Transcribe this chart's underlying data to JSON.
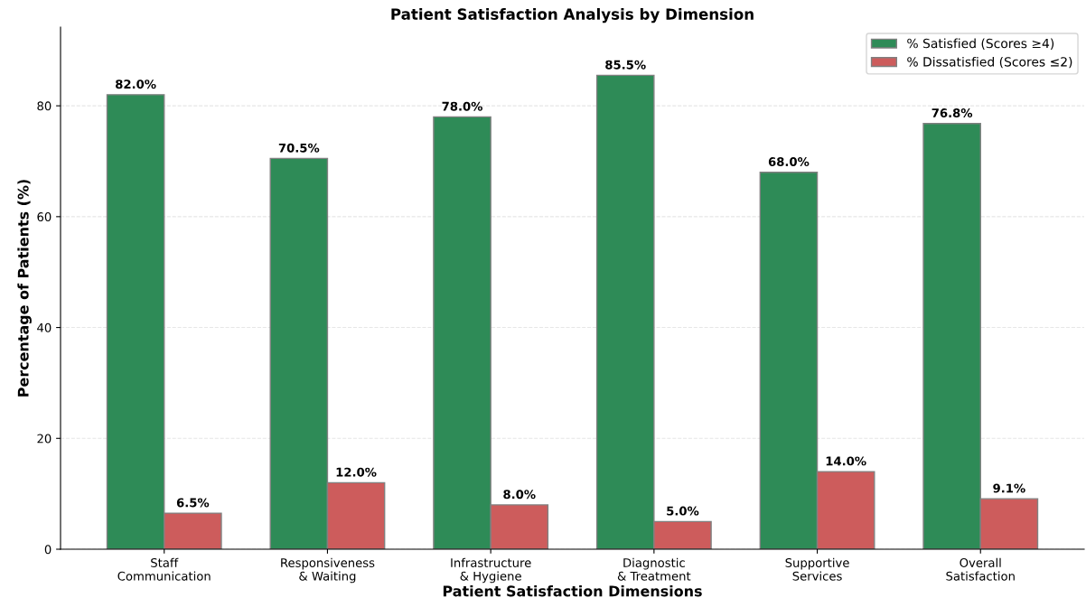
{
  "chart_data": {
    "type": "bar",
    "title": "Patient Satisfaction Analysis by Dimension",
    "xlabel": "Patient Satisfaction Dimensions",
    "ylabel": "Percentage of Patients (%)",
    "categories": [
      "Staff\nCommunication",
      "Responsiveness\n& Waiting",
      "Infrastructure\n& Hygiene",
      "Diagnostic\n& Treatment",
      "Supportive\nServices",
      "Overall\nSatisfaction"
    ],
    "series": [
      {
        "name": "% Satisfied (Scores ≥4)",
        "color": "#2e8b57",
        "values": [
          82.0,
          70.5,
          78.0,
          85.5,
          68.0,
          76.8
        ],
        "value_labels": [
          "82.0%",
          "70.5%",
          "78.0%",
          "85.5%",
          "68.0%",
          "76.8%"
        ]
      },
      {
        "name": "% Dissatisfied (Scores ≤2)",
        "color": "#cd5c5c",
        "values": [
          6.5,
          12.0,
          8.0,
          5.0,
          14.0,
          9.1
        ],
        "value_labels": [
          "6.5%",
          "12.0%",
          "8.0%",
          "5.0%",
          "14.0%",
          "9.1%"
        ]
      }
    ],
    "ylim": [
      0,
      94.2
    ],
    "yticks": [
      0,
      20,
      40,
      60,
      80
    ],
    "grid": "y",
    "legend": "top right"
  }
}
